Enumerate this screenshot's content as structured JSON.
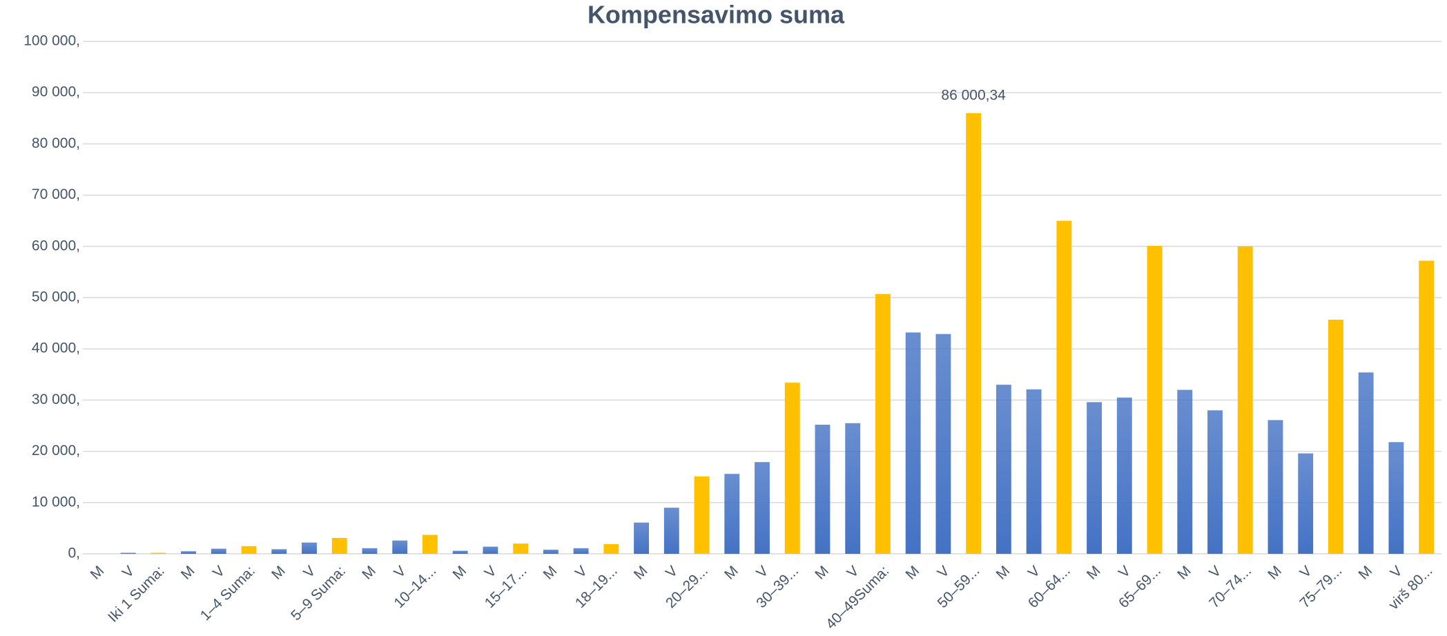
{
  "chart_data": {
    "type": "bar",
    "title": "Kompensavimo suma",
    "categories": [
      "M",
      "V",
      "Iki 1 Suma:",
      "M",
      "V",
      "1–4 Suma:",
      "M",
      "V",
      "5–9 Suma:",
      "M",
      "V",
      "10–14...",
      "M",
      "V",
      "15–17...",
      "M",
      "V",
      "18–19...",
      "M",
      "V",
      "20–29...",
      "M",
      "V",
      "30–39...",
      "M",
      "V",
      "40–49Suma:",
      "M",
      "V",
      "50–59...",
      "M",
      "V",
      "60–64...",
      "M",
      "V",
      "65–69...",
      "M",
      "V",
      "70–74...",
      "M",
      "V",
      "75–79...",
      "M",
      "V",
      "virš 80..."
    ],
    "values": [
      0,
      200,
      200,
      500,
      1000,
      1500,
      900,
      2200,
      3100,
      1100,
      2600,
      3700,
      600,
      1400,
      2000,
      800,
      1100,
      1900,
      6100,
      9000,
      15100,
      15600,
      17900,
      33400,
      25200,
      25500,
      50700,
      43200,
      42900,
      86000.34,
      33000,
      32100,
      65000,
      29600,
      30500,
      60100,
      32000,
      28000,
      60000,
      26100,
      19600,
      45700,
      35400,
      21800,
      57200
    ],
    "value_labels": [
      null,
      null,
      null,
      null,
      null,
      null,
      null,
      null,
      null,
      null,
      null,
      null,
      null,
      null,
      null,
      null,
      null,
      null,
      null,
      null,
      null,
      null,
      null,
      null,
      null,
      null,
      null,
      null,
      null,
      "86 000,34",
      null,
      null,
      null,
      null,
      null,
      null,
      null,
      null,
      null,
      null,
      null,
      null,
      null,
      null,
      null
    ],
    "colors": [
      "#4472c4",
      "#4472c4",
      "#ffc000",
      "#4472c4",
      "#4472c4",
      "#ffc000",
      "#4472c4",
      "#4472c4",
      "#ffc000",
      "#4472c4",
      "#4472c4",
      "#ffc000",
      "#4472c4",
      "#4472c4",
      "#ffc000",
      "#4472c4",
      "#4472c4",
      "#ffc000",
      "#4472c4",
      "#4472c4",
      "#ffc000",
      "#4472c4",
      "#4472c4",
      "#ffc000",
      "#4472c4",
      "#4472c4",
      "#ffc000",
      "#4472c4",
      "#4472c4",
      "#ffc000",
      "#4472c4",
      "#4472c4",
      "#ffc000",
      "#4472c4",
      "#4472c4",
      "#ffc000",
      "#4472c4",
      "#4472c4",
      "#ffc000",
      "#4472c4",
      "#4472c4",
      "#ffc000",
      "#4472c4",
      "#4472c4",
      "#ffc000"
    ],
    "ylim": [
      0,
      100000
    ],
    "yticks": [
      {
        "value": 0,
        "label": "0,"
      },
      {
        "value": 10000,
        "label": "10 000,"
      },
      {
        "value": 20000,
        "label": "20 000,"
      },
      {
        "value": 30000,
        "label": "30 000,"
      },
      {
        "value": 40000,
        "label": "40 000,"
      },
      {
        "value": 50000,
        "label": "50 000,"
      },
      {
        "value": 60000,
        "label": "60 000,"
      },
      {
        "value": 70000,
        "label": "70 000,"
      },
      {
        "value": 80000,
        "label": "80 000,"
      },
      {
        "value": 90000,
        "label": "90 000,"
      },
      {
        "value": 100000,
        "label": "100 000,"
      }
    ],
    "grid": true
  }
}
